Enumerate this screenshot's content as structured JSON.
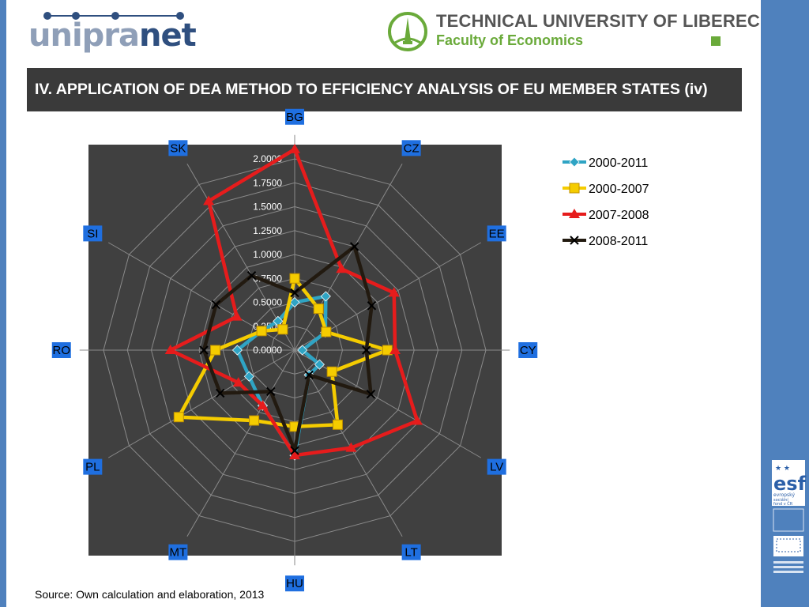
{
  "header": {
    "logo_left": "unipranet",
    "university_name": "TECHNICAL UNIVERSITY OF LIBEREC",
    "faculty_name": "Faculty of Economics"
  },
  "title": "IV. APPLICATION OF DEA METHOD TO EFFICIENCY ANALYSIS OF EU MEMBER STATES (iv)",
  "source": "Source: Own calculation and elaboration, 2013",
  "colors": {
    "accent_blue": "#4f81bd",
    "title_bar": "#3a3a3a",
    "plot_area": "#404040",
    "faculty_green": "#6aaa3a"
  },
  "chart_data": {
    "type": "radar",
    "categories": [
      "BG",
      "CZ",
      "EE",
      "CY",
      "LV",
      "LT",
      "HU",
      "MT",
      "PL",
      "RO",
      "SI",
      "SK"
    ],
    "radial_ticks": [
      "0.0000",
      "0.2500",
      "0.5000",
      "0.7500",
      "1.0000",
      "1.2500",
      "1.5000",
      "1.7500",
      "2.0000"
    ],
    "rlim": [
      0,
      2
    ],
    "grid": true,
    "legend_position": "right",
    "series": [
      {
        "name": "2000-2011",
        "color": "#2fa4c4",
        "marker": "diamond",
        "values": [
          0.5,
          0.65,
          0.37,
          0.08,
          0.3,
          0.3,
          1.1,
          0.67,
          0.55,
          0.6,
          0.4,
          0.35
        ]
      },
      {
        "name": "2000-2007",
        "color": "#f5cc00",
        "marker": "square",
        "values": [
          0.75,
          0.5,
          0.38,
          0.97,
          0.45,
          0.9,
          0.8,
          0.85,
          1.4,
          0.83,
          0.4,
          0.25
        ]
      },
      {
        "name": "2007-2008",
        "color": "#e61c1c",
        "marker": "triangle",
        "values": [
          2.1,
          0.98,
          1.2,
          1.05,
          1.48,
          1.18,
          1.1,
          0.67,
          0.68,
          1.3,
          0.7,
          1.8
        ]
      },
      {
        "name": "2008-2011",
        "color": "#221a10",
        "marker": "cross",
        "values": [
          0.6,
          1.25,
          0.93,
          0.75,
          0.92,
          0.3,
          1.05,
          0.5,
          0.9,
          0.95,
          0.95,
          0.9
        ]
      }
    ]
  },
  "esf": {
    "brand": "esf",
    "line1": "evropský",
    "line2": "sociální",
    "line3": "fond v ČR"
  }
}
